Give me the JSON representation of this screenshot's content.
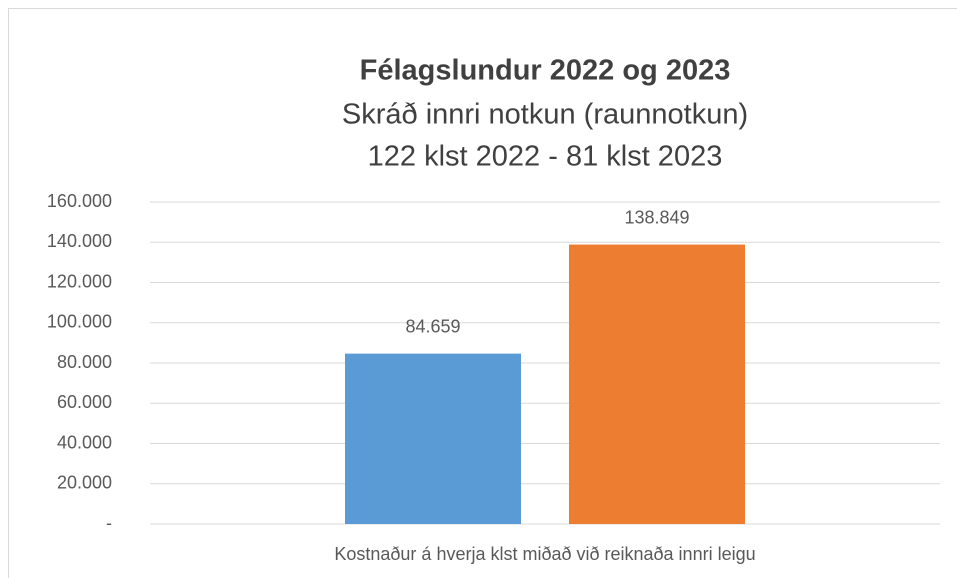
{
  "chart_data": {
    "type": "bar",
    "title": "Félagslundur 2022 og 2023",
    "subtitle": [
      "Skráð innri notkun (raunnotkun)",
      "122 klst 2022 - 81 klst 2023"
    ],
    "categories": [
      "Kostnaður á hverja klst miðað við reiknaða innri leigu"
    ],
    "series": [
      {
        "color": "#5b9bd5",
        "values": [
          84659
        ],
        "value_labels": [
          "84.659"
        ]
      },
      {
        "color": "#ed7d31",
        "values": [
          138849
        ],
        "value_labels": [
          "138.849"
        ]
      }
    ],
    "ylim": [
      0,
      160000
    ],
    "yticks": [
      {
        "value": 0,
        "label": "-"
      },
      {
        "value": 20000,
        "label": "20.000"
      },
      {
        "value": 40000,
        "label": "40.000"
      },
      {
        "value": 60000,
        "label": "60.000"
      },
      {
        "value": 80000,
        "label": "80.000"
      },
      {
        "value": 100000,
        "label": "100.000"
      },
      {
        "value": 120000,
        "label": "120.000"
      },
      {
        "value": 140000,
        "label": "140.000"
      },
      {
        "value": 160000,
        "label": "160.000"
      }
    ],
    "grid": true
  }
}
